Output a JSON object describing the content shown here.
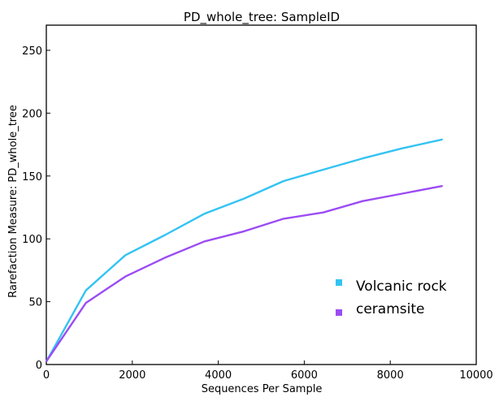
{
  "chart_data": {
    "type": "line",
    "title": "PD_whole_tree: SampleID",
    "xlabel": "Sequences Per Sample",
    "ylabel": "Rarefaction Measure: PD_whole_tree",
    "xlim": [
      0,
      10000
    ],
    "ylim": [
      0,
      270
    ],
    "xticks": [
      0,
      2000,
      4000,
      6000,
      8000,
      10000
    ],
    "yticks": [
      0,
      50,
      100,
      150,
      200,
      250
    ],
    "grid": false,
    "legend_position": "bottom-right",
    "series": [
      {
        "name": "Volcanic rock",
        "color": "#33c3f3",
        "x": [
          10,
          920,
          1840,
          2760,
          3680,
          4600,
          5520,
          6440,
          7360,
          8280,
          9200
        ],
        "y": [
          3,
          59,
          87,
          103,
          120,
          132,
          146,
          155,
          164,
          172,
          179
        ]
      },
      {
        "name": "ceramsite",
        "color": "#9b4cf4",
        "x": [
          10,
          920,
          1840,
          2760,
          3680,
          4600,
          5520,
          6440,
          7360,
          8280,
          9200
        ],
        "y": [
          3,
          49,
          70,
          85,
          98,
          106,
          116,
          121,
          130,
          136,
          142
        ]
      }
    ]
  }
}
